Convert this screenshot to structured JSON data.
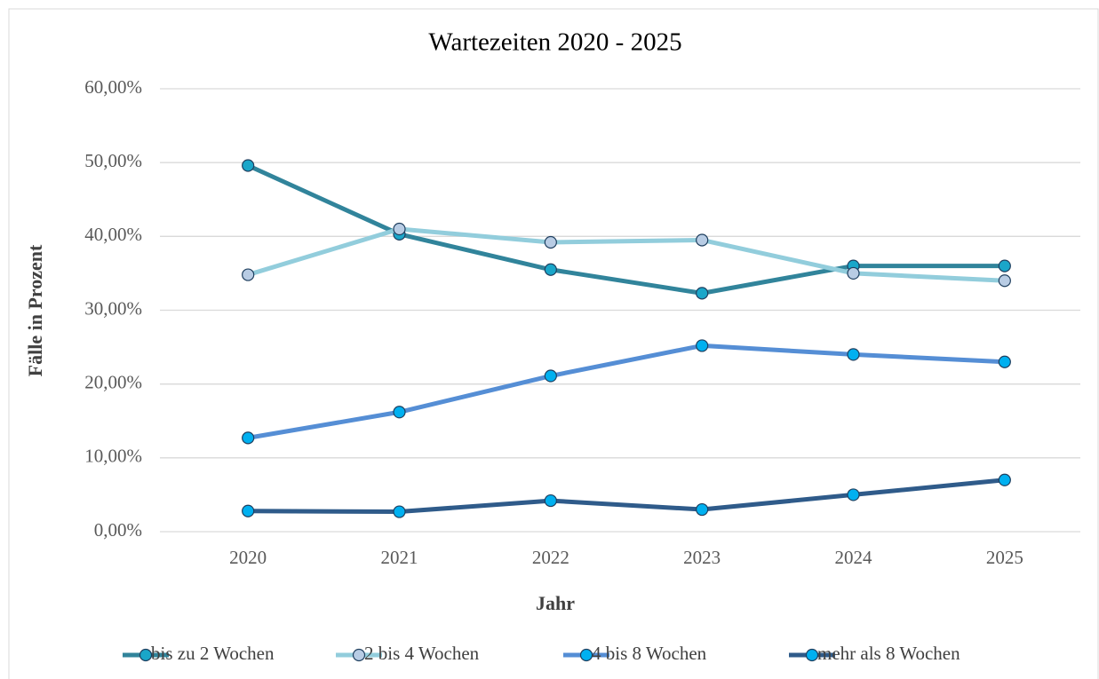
{
  "chart_data": {
    "type": "line",
    "title": "Wartezeiten 2020 - 2025",
    "x_label": "Jahr",
    "y_label": "Fälle in Prozent",
    "categories": [
      "2020",
      "2021",
      "2022",
      "2023",
      "2024",
      "2025"
    ],
    "series": [
      {
        "name": "bis zu 2 Wochen",
        "color": "#31849b",
        "marker_color": "#1aa6c9",
        "values": [
          49.6,
          40.3,
          35.5,
          32.3,
          36,
          36
        ]
      },
      {
        "name": "2 bis 4 Wochen",
        "color": "#92cddc",
        "marker_color": "#b8cce4",
        "values": [
          34.8,
          41,
          39.2,
          39.5,
          35,
          34
        ]
      },
      {
        "name": "4 bis 8 Wochen",
        "color": "#558ed5",
        "marker_color": "#00b0f0",
        "values": [
          12.7,
          16.2,
          21.1,
          25.2,
          24,
          23
        ]
      },
      {
        "name": "mehr als 8 Wochen",
        "color": "#2f5b8a",
        "marker_color": "#00b0f0",
        "values": [
          2.8,
          2.7,
          4.2,
          3,
          5,
          7
        ]
      }
    ],
    "ylim": [
      0,
      60
    ],
    "yticks": [
      {
        "value": 0,
        "label": "0,00%"
      },
      {
        "value": 10,
        "label": "10,00%"
      },
      {
        "value": 20,
        "label": "20,00%"
      },
      {
        "value": 30,
        "label": "30,00%"
      },
      {
        "value": 40,
        "label": "40,00%"
      },
      {
        "value": 50,
        "label": "50,00%"
      },
      {
        "value": 60,
        "label": "60,00%"
      }
    ],
    "grid": true,
    "legend": "bottom"
  }
}
